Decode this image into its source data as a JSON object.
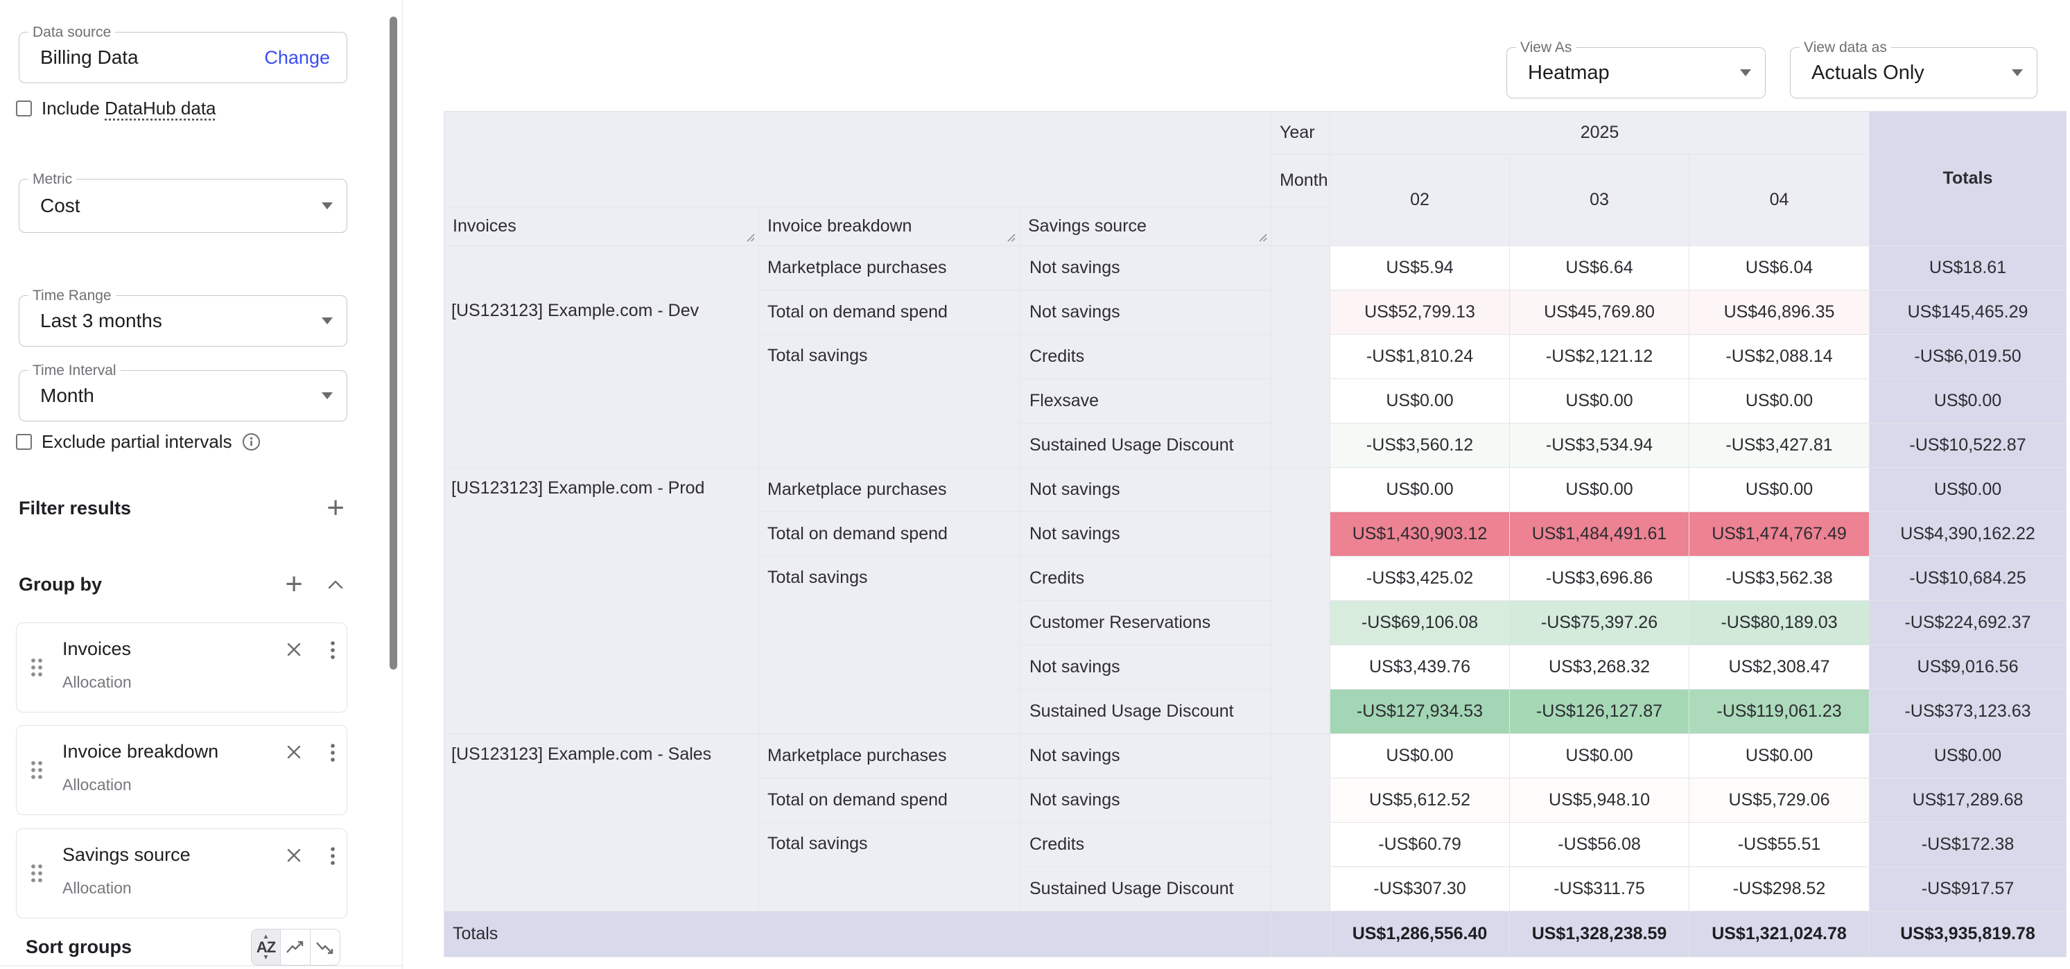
{
  "sidebar": {
    "data_source": {
      "label": "Data source",
      "value": "Billing Data",
      "action": "Change"
    },
    "include_datahub": {
      "prefix": "Include ",
      "link": "DataHub data"
    },
    "metric": {
      "label": "Metric",
      "value": "Cost"
    },
    "time_range": {
      "label": "Time Range",
      "value": "Last 3 months"
    },
    "time_interval": {
      "label": "Time Interval",
      "value": "Month"
    },
    "exclude_partial": {
      "label": "Exclude partial intervals"
    },
    "filter_results": {
      "label": "Filter results"
    },
    "group_by": {
      "label": "Group by"
    },
    "groups": [
      {
        "title": "Invoices",
        "subtitle": "Allocation"
      },
      {
        "title": "Invoice breakdown",
        "subtitle": "Allocation"
      },
      {
        "title": "Savings source",
        "subtitle": "Allocation"
      }
    ],
    "sort_groups": {
      "label": "Sort groups"
    }
  },
  "toolbar": {
    "view_as": {
      "label": "View As",
      "value": "Heatmap"
    },
    "view_data_as": {
      "label": "View data as",
      "value": "Actuals Only"
    }
  },
  "colors": {
    "accent_blue": "#3b4df2",
    "header_lavender": "#ededf4",
    "totals_lavender": "#d8d9ea",
    "heat_red": "#ec8292",
    "heat_green_light": "#d3ebda",
    "heat_green": "#a6d8b6"
  },
  "table": {
    "year_label": "Year",
    "month_label": "Month",
    "year_value": "2025",
    "months": [
      "02",
      "03",
      "04"
    ],
    "totals_head": "Totals",
    "col_headers": [
      "Invoices",
      "Invoice breakdown",
      "Savings source"
    ],
    "groups": [
      {
        "invoice": "[US123123] Example.com - Dev",
        "breakdowns": [
          {
            "label": "Marketplace purchases",
            "rows": [
              {
                "source": "Not savings",
                "values": [
                  "US$5.94",
                  "US$6.64",
                  "US$6.04"
                ],
                "total": "US$18.61",
                "bg": [
                  null,
                  null,
                  null
                ]
              }
            ]
          },
          {
            "label": "Total on demand spend",
            "rows": [
              {
                "source": "Not savings",
                "values": [
                  "US$52,799.13",
                  "US$45,769.80",
                  "US$46,896.35"
                ],
                "total": "US$145,465.29",
                "bg": [
                  "#fdf4f5",
                  "#fdf6f6",
                  "#fdf5f6"
                ]
              }
            ]
          },
          {
            "label": "Total savings",
            "rows": [
              {
                "source": "Credits",
                "values": [
                  "-US$1,810.24",
                  "-US$2,121.12",
                  "-US$2,088.14"
                ],
                "total": "-US$6,019.50",
                "bg": [
                  null,
                  null,
                  null
                ]
              },
              {
                "source": "Flexsave",
                "values": [
                  "US$0.00",
                  "US$0.00",
                  "US$0.00"
                ],
                "total": "US$0.00",
                "bg": [
                  null,
                  null,
                  null
                ]
              },
              {
                "source": "Sustained Usage Discount",
                "values": [
                  "-US$3,560.12",
                  "-US$3,534.94",
                  "-US$3,427.81"
                ],
                "total": "-US$10,522.87",
                "bg": [
                  "#f5faf6",
                  "#f5faf6",
                  "#f6faf7"
                ]
              }
            ]
          }
        ]
      },
      {
        "invoice": "[US123123] Example.com - Prod",
        "breakdowns": [
          {
            "label": "Marketplace purchases",
            "rows": [
              {
                "source": "Not savings",
                "values": [
                  "US$0.00",
                  "US$0.00",
                  "US$0.00"
                ],
                "total": "US$0.00",
                "bg": [
                  null,
                  null,
                  null
                ]
              }
            ]
          },
          {
            "label": "Total on demand spend",
            "rows": [
              {
                "source": "Not savings",
                "values": [
                  "US$1,430,903.12",
                  "US$1,484,491.61",
                  "US$1,474,767.49"
                ],
                "total": "US$4,390,162.22",
                "bg": [
                  "#ec8292",
                  "#ec8292",
                  "#ec8292"
                ]
              }
            ]
          },
          {
            "label": "Total savings",
            "rows": [
              {
                "source": "Credits",
                "values": [
                  "-US$3,425.02",
                  "-US$3,696.86",
                  "-US$3,562.38"
                ],
                "total": "-US$10,684.25",
                "bg": [
                  null,
                  null,
                  null
                ]
              },
              {
                "source": "Customer Reservations",
                "values": [
                  "-US$69,106.08",
                  "-US$75,397.26",
                  "-US$80,189.03"
                ],
                "total": "-US$224,692.37",
                "bg": [
                  "#d8ecde",
                  "#d4ebdb",
                  "#d0e9d8"
                ]
              },
              {
                "source": "Not savings",
                "values": [
                  "US$3,439.76",
                  "US$3,268.32",
                  "US$2,308.47"
                ],
                "total": "US$9,016.56",
                "bg": [
                  null,
                  null,
                  null
                ]
              },
              {
                "source": "Sustained Usage Discount",
                "values": [
                  "-US$127,934.53",
                  "-US$126,127.87",
                  "-US$119,061.23"
                ],
                "total": "-US$373,123.63",
                "bg": [
                  "#a3d6b4",
                  "#a6d8b6",
                  "#acdaba"
                ]
              }
            ]
          }
        ]
      },
      {
        "invoice": "[US123123] Example.com - Sales",
        "breakdowns": [
          {
            "label": "Marketplace purchases",
            "rows": [
              {
                "source": "Not savings",
                "values": [
                  "US$0.00",
                  "US$0.00",
                  "US$0.00"
                ],
                "total": "US$0.00",
                "bg": [
                  null,
                  null,
                  null
                ]
              }
            ]
          },
          {
            "label": "Total on demand spend",
            "rows": [
              {
                "source": "Not savings",
                "values": [
                  "US$5,612.52",
                  "US$5,948.10",
                  "US$5,729.06"
                ],
                "total": "US$17,289.68",
                "bg": [
                  "#fefbfb",
                  "#fefbfb",
                  "#fefbfb"
                ]
              }
            ]
          },
          {
            "label": "Total savings",
            "rows": [
              {
                "source": "Credits",
                "values": [
                  "-US$60.79",
                  "-US$56.08",
                  "-US$55.51"
                ],
                "total": "-US$172.38",
                "bg": [
                  null,
                  null,
                  null
                ]
              },
              {
                "source": "Sustained Usage Discount",
                "values": [
                  "-US$307.30",
                  "-US$311.75",
                  "-US$298.52"
                ],
                "total": "-US$917.57",
                "bg": [
                  null,
                  null,
                  null
                ]
              }
            ]
          }
        ]
      }
    ],
    "totals_row": {
      "label": "Totals",
      "values": [
        "US$1,286,556.40",
        "US$1,328,238.59",
        "US$1,321,024.78"
      ],
      "total": "US$3,935,819.78"
    }
  }
}
